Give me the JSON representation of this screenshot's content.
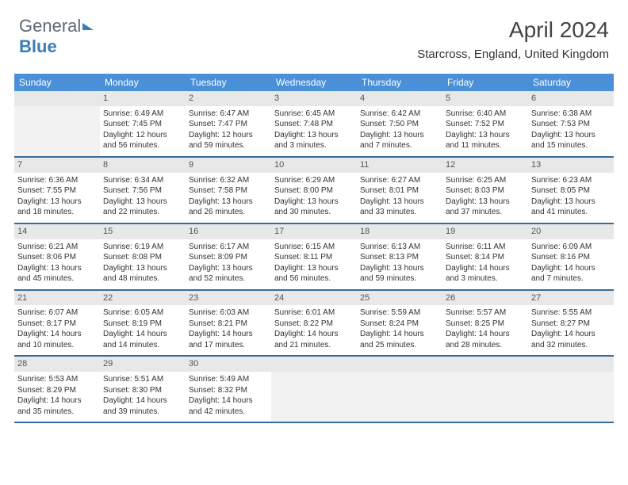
{
  "logo": {
    "text1": "General",
    "text2": "Blue"
  },
  "title": "April 2024",
  "location": "Starcross, England, United Kingdom",
  "colors": {
    "header_bg": "#4a90d9",
    "header_text": "#ffffff",
    "week_border": "#3a6a9a",
    "daynum_bg": "#e8e8e8",
    "empty_bg": "#f2f2f2",
    "body_text": "#333333"
  },
  "day_headers": [
    "Sunday",
    "Monday",
    "Tuesday",
    "Wednesday",
    "Thursday",
    "Friday",
    "Saturday"
  ],
  "weeks": [
    [
      {
        "empty": true
      },
      {
        "day": "1",
        "sunrise": "Sunrise: 6:49 AM",
        "sunset": "Sunset: 7:45 PM",
        "daylight1": "Daylight: 12 hours",
        "daylight2": "and 56 minutes."
      },
      {
        "day": "2",
        "sunrise": "Sunrise: 6:47 AM",
        "sunset": "Sunset: 7:47 PM",
        "daylight1": "Daylight: 12 hours",
        "daylight2": "and 59 minutes."
      },
      {
        "day": "3",
        "sunrise": "Sunrise: 6:45 AM",
        "sunset": "Sunset: 7:48 PM",
        "daylight1": "Daylight: 13 hours",
        "daylight2": "and 3 minutes."
      },
      {
        "day": "4",
        "sunrise": "Sunrise: 6:42 AM",
        "sunset": "Sunset: 7:50 PM",
        "daylight1": "Daylight: 13 hours",
        "daylight2": "and 7 minutes."
      },
      {
        "day": "5",
        "sunrise": "Sunrise: 6:40 AM",
        "sunset": "Sunset: 7:52 PM",
        "daylight1": "Daylight: 13 hours",
        "daylight2": "and 11 minutes."
      },
      {
        "day": "6",
        "sunrise": "Sunrise: 6:38 AM",
        "sunset": "Sunset: 7:53 PM",
        "daylight1": "Daylight: 13 hours",
        "daylight2": "and 15 minutes."
      }
    ],
    [
      {
        "day": "7",
        "sunrise": "Sunrise: 6:36 AM",
        "sunset": "Sunset: 7:55 PM",
        "daylight1": "Daylight: 13 hours",
        "daylight2": "and 18 minutes."
      },
      {
        "day": "8",
        "sunrise": "Sunrise: 6:34 AM",
        "sunset": "Sunset: 7:56 PM",
        "daylight1": "Daylight: 13 hours",
        "daylight2": "and 22 minutes."
      },
      {
        "day": "9",
        "sunrise": "Sunrise: 6:32 AM",
        "sunset": "Sunset: 7:58 PM",
        "daylight1": "Daylight: 13 hours",
        "daylight2": "and 26 minutes."
      },
      {
        "day": "10",
        "sunrise": "Sunrise: 6:29 AM",
        "sunset": "Sunset: 8:00 PM",
        "daylight1": "Daylight: 13 hours",
        "daylight2": "and 30 minutes."
      },
      {
        "day": "11",
        "sunrise": "Sunrise: 6:27 AM",
        "sunset": "Sunset: 8:01 PM",
        "daylight1": "Daylight: 13 hours",
        "daylight2": "and 33 minutes."
      },
      {
        "day": "12",
        "sunrise": "Sunrise: 6:25 AM",
        "sunset": "Sunset: 8:03 PM",
        "daylight1": "Daylight: 13 hours",
        "daylight2": "and 37 minutes."
      },
      {
        "day": "13",
        "sunrise": "Sunrise: 6:23 AM",
        "sunset": "Sunset: 8:05 PM",
        "daylight1": "Daylight: 13 hours",
        "daylight2": "and 41 minutes."
      }
    ],
    [
      {
        "day": "14",
        "sunrise": "Sunrise: 6:21 AM",
        "sunset": "Sunset: 8:06 PM",
        "daylight1": "Daylight: 13 hours",
        "daylight2": "and 45 minutes."
      },
      {
        "day": "15",
        "sunrise": "Sunrise: 6:19 AM",
        "sunset": "Sunset: 8:08 PM",
        "daylight1": "Daylight: 13 hours",
        "daylight2": "and 48 minutes."
      },
      {
        "day": "16",
        "sunrise": "Sunrise: 6:17 AM",
        "sunset": "Sunset: 8:09 PM",
        "daylight1": "Daylight: 13 hours",
        "daylight2": "and 52 minutes."
      },
      {
        "day": "17",
        "sunrise": "Sunrise: 6:15 AM",
        "sunset": "Sunset: 8:11 PM",
        "daylight1": "Daylight: 13 hours",
        "daylight2": "and 56 minutes."
      },
      {
        "day": "18",
        "sunrise": "Sunrise: 6:13 AM",
        "sunset": "Sunset: 8:13 PM",
        "daylight1": "Daylight: 13 hours",
        "daylight2": "and 59 minutes."
      },
      {
        "day": "19",
        "sunrise": "Sunrise: 6:11 AM",
        "sunset": "Sunset: 8:14 PM",
        "daylight1": "Daylight: 14 hours",
        "daylight2": "and 3 minutes."
      },
      {
        "day": "20",
        "sunrise": "Sunrise: 6:09 AM",
        "sunset": "Sunset: 8:16 PM",
        "daylight1": "Daylight: 14 hours",
        "daylight2": "and 7 minutes."
      }
    ],
    [
      {
        "day": "21",
        "sunrise": "Sunrise: 6:07 AM",
        "sunset": "Sunset: 8:17 PM",
        "daylight1": "Daylight: 14 hours",
        "daylight2": "and 10 minutes."
      },
      {
        "day": "22",
        "sunrise": "Sunrise: 6:05 AM",
        "sunset": "Sunset: 8:19 PM",
        "daylight1": "Daylight: 14 hours",
        "daylight2": "and 14 minutes."
      },
      {
        "day": "23",
        "sunrise": "Sunrise: 6:03 AM",
        "sunset": "Sunset: 8:21 PM",
        "daylight1": "Daylight: 14 hours",
        "daylight2": "and 17 minutes."
      },
      {
        "day": "24",
        "sunrise": "Sunrise: 6:01 AM",
        "sunset": "Sunset: 8:22 PM",
        "daylight1": "Daylight: 14 hours",
        "daylight2": "and 21 minutes."
      },
      {
        "day": "25",
        "sunrise": "Sunrise: 5:59 AM",
        "sunset": "Sunset: 8:24 PM",
        "daylight1": "Daylight: 14 hours",
        "daylight2": "and 25 minutes."
      },
      {
        "day": "26",
        "sunrise": "Sunrise: 5:57 AM",
        "sunset": "Sunset: 8:25 PM",
        "daylight1": "Daylight: 14 hours",
        "daylight2": "and 28 minutes."
      },
      {
        "day": "27",
        "sunrise": "Sunrise: 5:55 AM",
        "sunset": "Sunset: 8:27 PM",
        "daylight1": "Daylight: 14 hours",
        "daylight2": "and 32 minutes."
      }
    ],
    [
      {
        "day": "28",
        "sunrise": "Sunrise: 5:53 AM",
        "sunset": "Sunset: 8:29 PM",
        "daylight1": "Daylight: 14 hours",
        "daylight2": "and 35 minutes."
      },
      {
        "day": "29",
        "sunrise": "Sunrise: 5:51 AM",
        "sunset": "Sunset: 8:30 PM",
        "daylight1": "Daylight: 14 hours",
        "daylight2": "and 39 minutes."
      },
      {
        "day": "30",
        "sunrise": "Sunrise: 5:49 AM",
        "sunset": "Sunset: 8:32 PM",
        "daylight1": "Daylight: 14 hours",
        "daylight2": "and 42 minutes."
      },
      {
        "empty": true
      },
      {
        "empty": true
      },
      {
        "empty": true
      },
      {
        "empty": true
      }
    ]
  ]
}
